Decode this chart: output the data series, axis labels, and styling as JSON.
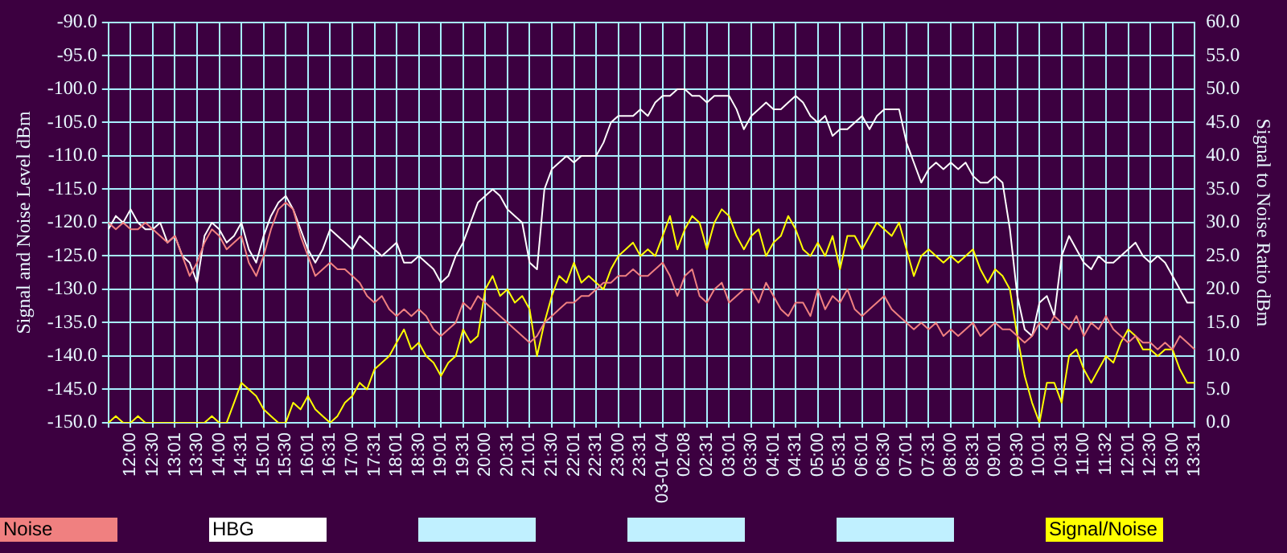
{
  "chart_data": {
    "type": "line",
    "ylabel": "Signal and Noise Level dBm",
    "y2label": "Signal to Noise Ratio dBm",
    "categories": [
      null,
      null,
      null,
      "12:00",
      null,
      null,
      "12:30",
      null,
      null,
      "13:01",
      null,
      null,
      "13:30",
      null,
      null,
      "14:00",
      null,
      null,
      "14:31",
      null,
      null,
      "15:01",
      null,
      null,
      "15:30",
      null,
      null,
      "16:01",
      null,
      null,
      "16:31",
      null,
      null,
      "17:00",
      null,
      null,
      "17:31",
      null,
      null,
      "18:01",
      null,
      null,
      "18:30",
      null,
      null,
      "19:01",
      null,
      null,
      "19:31",
      null,
      null,
      "20:00",
      null,
      null,
      "20:31",
      null,
      null,
      "21:01",
      null,
      null,
      "21:30",
      null,
      null,
      "22:01",
      null,
      null,
      "22:31",
      null,
      null,
      "23:00",
      null,
      null,
      "23:31",
      null,
      null,
      "03-01-04",
      null,
      null,
      "02:08",
      null,
      null,
      "02:31",
      null,
      null,
      "03:01",
      null,
      null,
      "03:30",
      null,
      null,
      "04:01",
      null,
      null,
      "04:31",
      null,
      null,
      "05:00",
      null,
      null,
      "05:31",
      null,
      null,
      "06:01",
      null,
      null,
      "06:30",
      null,
      null,
      "07:01",
      null,
      null,
      "07:31",
      null,
      null,
      "08:00",
      null,
      null,
      "08:31",
      null,
      null,
      "09:01",
      null,
      null,
      "09:30",
      null,
      null,
      "10:01",
      null,
      null,
      "10:31",
      null,
      null,
      "11:00",
      null,
      null,
      "11:32",
      null,
      null,
      "12:01",
      null,
      null,
      "12:30",
      null,
      null,
      "13:00",
      null,
      null,
      "13:31"
    ],
    "series": [
      {
        "name": "Noise",
        "color": "#f08080",
        "axis": "y",
        "values": [
          -120,
          -121,
          -120,
          -121,
          -121,
          -120,
          -121,
          -122,
          -123,
          -122,
          -125,
          -128,
          -126,
          -123,
          -121,
          -122,
          -124,
          -123,
          -122,
          -126,
          -128,
          -125,
          -121,
          -118,
          -117,
          -118,
          -122,
          -125,
          -128,
          -127,
          -126,
          -127,
          -127,
          -128,
          -129,
          -131,
          -132,
          -131,
          -133,
          -134,
          -133,
          -134,
          -133,
          -134,
          -136,
          -137,
          -136,
          -135,
          -132,
          -133,
          -131,
          -132,
          -133,
          -134,
          -135,
          -136,
          -137,
          -138,
          -137,
          -135,
          -134,
          -133,
          -132,
          -132,
          -131,
          -131,
          -130,
          -129,
          -129,
          -128,
          -128,
          -127,
          -128,
          -128,
          -127,
          -126,
          -128,
          -131,
          -128,
          -127,
          -131,
          -132,
          -130,
          -129,
          -132,
          -131,
          -130,
          -130,
          -132,
          -129,
          -131,
          -133,
          -134,
          -132,
          -132,
          -134,
          -130,
          -133,
          -131,
          -132,
          -130,
          -133,
          -134,
          -133,
          -132,
          -131,
          -133,
          -134,
          -135,
          -136,
          -135,
          -136,
          -135,
          -137,
          -136,
          -137,
          -136,
          -135,
          -137,
          -136,
          -135,
          -136,
          -136,
          -137,
          -138,
          -137,
          -135,
          -136,
          -134,
          -135,
          -136,
          -134,
          -137,
          -135,
          -136,
          -134,
          -136,
          -137,
          -138,
          -137,
          -138,
          -138,
          -139,
          -138,
          -139,
          -137,
          -138,
          -139
        ]
      },
      {
        "name": "HBG",
        "color": "#ffffff",
        "axis": "y",
        "values": [
          -121,
          -119,
          -120,
          -118,
          -120,
          -121,
          -121,
          -120,
          -123,
          -122,
          -125,
          -126,
          -129,
          -122,
          -120,
          -121,
          -123,
          -122,
          -120,
          -124,
          -126,
          -122,
          -119,
          -117,
          -116,
          -118,
          -121,
          -124,
          -126,
          -124,
          -121,
          -122,
          -123,
          -124,
          -122,
          -123,
          -124,
          -125,
          -124,
          -123,
          -126,
          -126,
          -125,
          -126,
          -127,
          -129,
          -128,
          -125,
          -123,
          -120,
          -117,
          -116,
          -115,
          -116,
          -118,
          -119,
          -120,
          -126,
          -127,
          -115,
          -112,
          -111,
          -110,
          -111,
          -110,
          -110,
          -110,
          -108,
          -105,
          -104,
          -104,
          -104,
          -103,
          -104,
          -102,
          -101,
          -101,
          -100,
          -100,
          -101,
          -101,
          -102,
          -101,
          -101,
          -101,
          -103,
          -106,
          -104,
          -103,
          -102,
          -103,
          -103,
          -102,
          -101,
          -102,
          -104,
          -105,
          -104,
          -107,
          -106,
          -106,
          -105,
          -104,
          -106,
          -104,
          -103,
          -103,
          -103,
          -108,
          -111,
          -114,
          -112,
          -111,
          -112,
          -111,
          -112,
          -111,
          -113,
          -114,
          -114,
          -113,
          -114,
          -121,
          -131,
          -136,
          -137,
          -132,
          -131,
          -134,
          -125,
          -122,
          -124,
          -126,
          -127,
          -125,
          -126,
          -126,
          -125,
          -124,
          -123,
          -125,
          -126,
          -125,
          -126,
          -128,
          -130,
          -132,
          -132
        ]
      },
      {
        "name": "Signal/Noise",
        "color": "#ffff00",
        "axis": "y2",
        "values": [
          0,
          1,
          0,
          0,
          1,
          0,
          0,
          0,
          0,
          0,
          0,
          0,
          0,
          0,
          1,
          0,
          0,
          3,
          6,
          5,
          4,
          2,
          1,
          0,
          0,
          3,
          2,
          4,
          2,
          1,
          0,
          1,
          3,
          4,
          6,
          5,
          8,
          9,
          10,
          12,
          14,
          11,
          12,
          10,
          9,
          7,
          9,
          10,
          14,
          12,
          13,
          20,
          22,
          19,
          20,
          18,
          19,
          17,
          10,
          15,
          19,
          22,
          21,
          24,
          21,
          22,
          21,
          20,
          23,
          25,
          26,
          27,
          25,
          26,
          25,
          28,
          31,
          26,
          29,
          31,
          30,
          26,
          30,
          32,
          31,
          28,
          26,
          28,
          29,
          25,
          27,
          28,
          31,
          29,
          26,
          25,
          27,
          25,
          28,
          23,
          28,
          28,
          26,
          28,
          30,
          29,
          28,
          30,
          26,
          22,
          25,
          26,
          25,
          24,
          25,
          24,
          25,
          26,
          23,
          21,
          23,
          22,
          20,
          13,
          7,
          3,
          0,
          6,
          6,
          3,
          10,
          11,
          8,
          6,
          8,
          10,
          9,
          12,
          14,
          13,
          11,
          11,
          10,
          11,
          11,
          8,
          6,
          6
        ]
      }
    ],
    "ylim": [
      -150,
      -90
    ],
    "yticks": [
      {
        "value": -150,
        "label": "-150.0"
      },
      {
        "value": -145,
        "label": "-145.0"
      },
      {
        "value": -140,
        "label": "-140.0"
      },
      {
        "value": -135,
        "label": "-135.0"
      },
      {
        "value": -130,
        "label": "-130.0"
      },
      {
        "value": -125,
        "label": "-125.0"
      },
      {
        "value": -120,
        "label": "-120.0"
      },
      {
        "value": -115,
        "label": "-115.0"
      },
      {
        "value": -110,
        "label": "-110.0"
      },
      {
        "value": -105,
        "label": "-105.0"
      },
      {
        "value": -100,
        "label": "-100.0"
      },
      {
        "value": -95,
        "label": "-95.0"
      },
      {
        "value": -90,
        "label": "-90.0"
      }
    ],
    "y2lim": [
      0,
      60
    ],
    "y2ticks": [
      {
        "value": 0,
        "label": "0.0"
      },
      {
        "value": 5,
        "label": "5.0"
      },
      {
        "value": 10,
        "label": "10.0"
      },
      {
        "value": 15,
        "label": "15.0"
      },
      {
        "value": 20,
        "label": "20.0"
      },
      {
        "value": 25,
        "label": "25.0"
      },
      {
        "value": 30,
        "label": "30.0"
      },
      {
        "value": 35,
        "label": "35.0"
      },
      {
        "value": 40,
        "label": "40.0"
      },
      {
        "value": 45,
        "label": "45.0"
      },
      {
        "value": 50,
        "label": "50.0"
      },
      {
        "value": 55,
        "label": "55.0"
      },
      {
        "value": 60,
        "label": "60.0"
      }
    ],
    "grid": true,
    "legend": "bottom"
  }
}
